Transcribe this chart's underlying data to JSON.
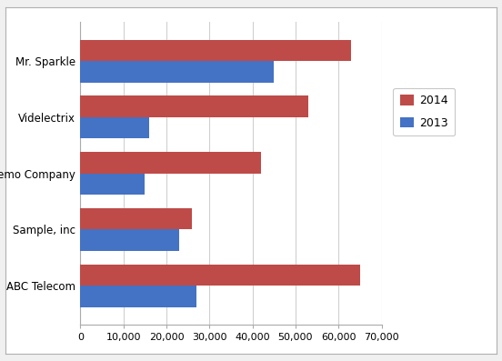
{
  "categories": [
    "ABC Telecom",
    "Sample, inc",
    "Demo Company",
    "Videlectrix",
    "Mr. Sparkle"
  ],
  "values_2014": [
    65000,
    26000,
    42000,
    53000,
    63000
  ],
  "values_2013": [
    27000,
    23000,
    15000,
    16000,
    45000
  ],
  "color_2014": "#BE4B48",
  "color_2013": "#4472C4",
  "legend_labels": [
    "2014",
    "2013"
  ],
  "xlim": [
    0,
    70000
  ],
  "xticks": [
    0,
    10000,
    20000,
    30000,
    40000,
    50000,
    60000,
    70000
  ],
  "bar_height": 0.38,
  "background_color": "#FFFFFF",
  "plot_bg_color": "#FFFFFF",
  "grid_color": "#D0D0D0",
  "outer_bg": "#F0F0F0",
  "spine_color": "#AAAAAA"
}
